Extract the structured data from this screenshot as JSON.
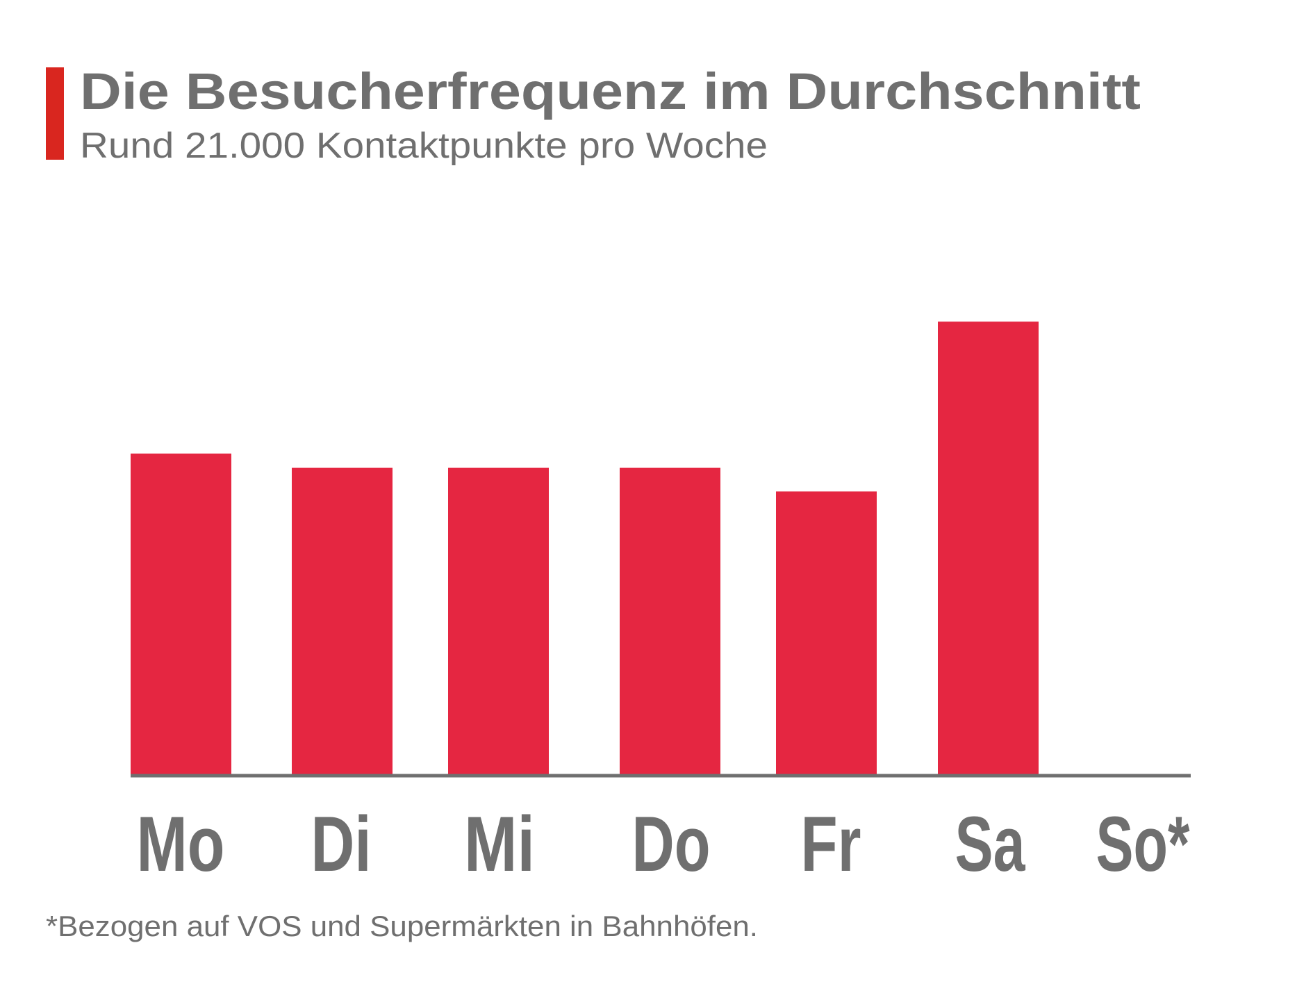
{
  "chart_data": {
    "type": "bar",
    "title": "Die Besucherfrequenz im Durchschnitt",
    "subtitle": "Rund 21.000 Kontaktpunkte pro Woche",
    "categories": [
      "Mo",
      "Di",
      "Mi",
      "Do",
      "Fr",
      "Sa",
      "So*"
    ],
    "values": [
      3400,
      3250,
      3250,
      3250,
      3000,
      4800,
      null
    ],
    "footnote": "*Bezogen auf VOS und Supermärkten in Bahnhöfen.",
    "xlabel": "",
    "ylabel": "",
    "grid": false,
    "legend": "none",
    "colors": {
      "bar": "#e52641",
      "accent": "#d9261f",
      "text": "#6f6f6f",
      "axis": "#6f6f6f"
    }
  }
}
